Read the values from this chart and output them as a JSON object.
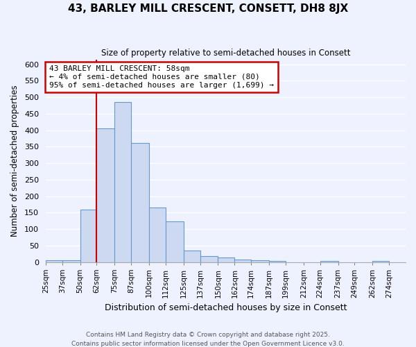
{
  "title": "43, BARLEY MILL CRESCENT, CONSETT, DH8 8JX",
  "subtitle": "Size of property relative to semi-detached houses in Consett",
  "xlabel": "Distribution of semi-detached houses by size in Consett",
  "ylabel": "Number of semi-detached properties",
  "bin_edges": [
    25,
    37,
    50,
    62,
    75,
    87,
    100,
    112,
    125,
    137,
    150,
    162,
    174,
    187,
    199,
    212,
    224,
    237,
    249,
    262,
    274,
    286
  ],
  "bin_labels": [
    "25sqm",
    "37sqm",
    "50sqm",
    "62sqm",
    "75sqm",
    "87sqm",
    "100sqm",
    "112sqm",
    "125sqm",
    "137sqm",
    "150sqm",
    "162sqm",
    "174sqm",
    "187sqm",
    "199sqm",
    "212sqm",
    "224sqm",
    "237sqm",
    "249sqm",
    "262sqm",
    "274sqm"
  ],
  "counts": [
    5,
    5,
    160,
    405,
    485,
    362,
    165,
    123,
    35,
    17,
    13,
    8,
    5,
    3,
    0,
    0,
    3,
    0,
    0,
    3,
    0
  ],
  "bar_facecolor": "#ccd9f0",
  "bar_edgecolor": "#6699cc",
  "vline_x": 62,
  "vline_color": "#cc0000",
  "annotation_line1": "43 BARLEY MILL CRESCENT: 58sqm",
  "annotation_line2": "← 4% of semi-detached houses are smaller (80)",
  "annotation_line3": "95% of semi-detached houses are larger (1,699) →",
  "annotation_box_edgecolor": "#cc0000",
  "annotation_box_facecolor": "#ffffff",
  "ylim": [
    0,
    615
  ],
  "yticks": [
    0,
    50,
    100,
    150,
    200,
    250,
    300,
    350,
    400,
    450,
    500,
    550,
    600
  ],
  "background_color": "#eef2ff",
  "grid_color": "#ffffff",
  "footer1": "Contains HM Land Registry data © Crown copyright and database right 2025.",
  "footer2": "Contains public sector information licensed under the Open Government Licence v3.0."
}
